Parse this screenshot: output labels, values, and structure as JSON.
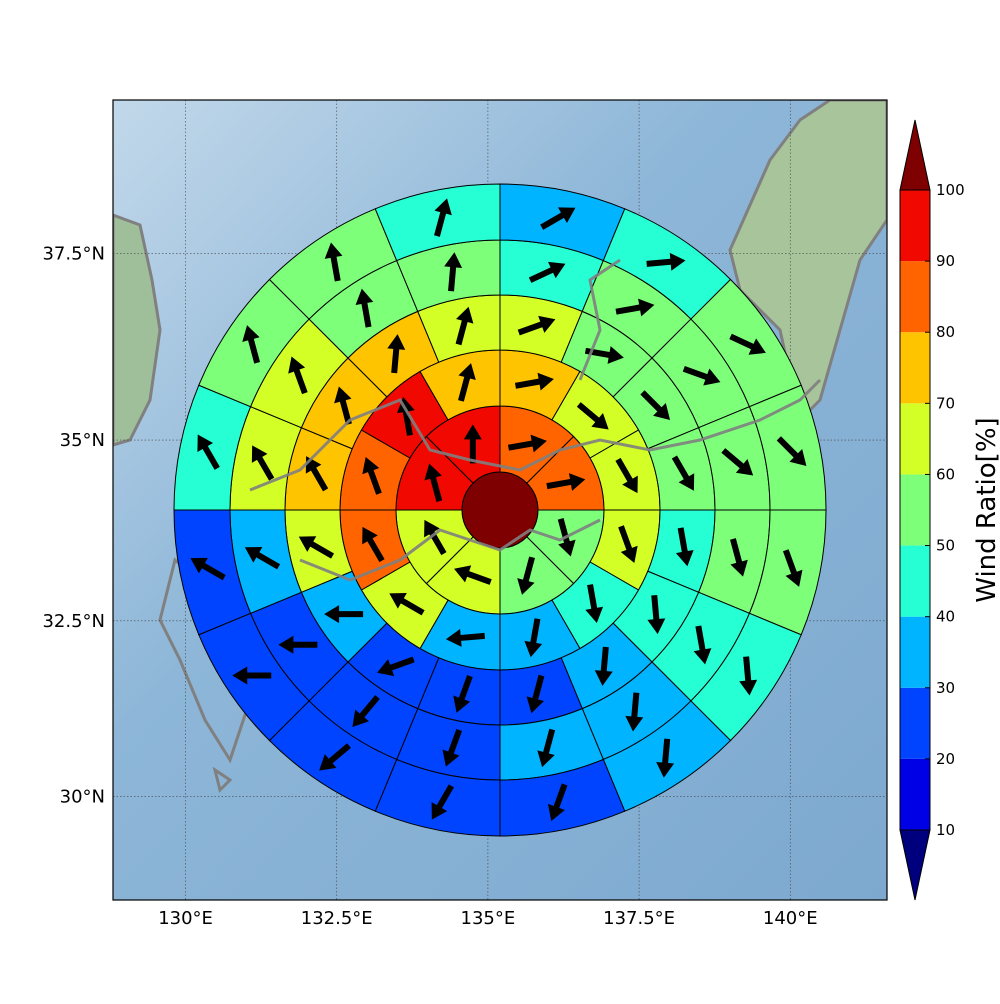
{
  "chart_data": {
    "type": "polar_grid",
    "xlim": [
      128.8,
      141.6
    ],
    "ylim": [
      28.5,
      39.5
    ],
    "xticks": [
      {
        "value": 130,
        "label": "130°E"
      },
      {
        "value": 132.5,
        "label": "132.5°E"
      },
      {
        "value": 135,
        "label": "135°E"
      },
      {
        "value": 137.5,
        "label": "137.5°E"
      },
      {
        "value": 140,
        "label": "140°E"
      }
    ],
    "yticks": [
      {
        "value": 30,
        "label": "30°N"
      },
      {
        "value": 32.5,
        "label": "32.5°N"
      },
      {
        "value": 35,
        "label": "35°N"
      },
      {
        "value": 37.5,
        "label": "37.5°N"
      }
    ],
    "grid": true,
    "center_value": 105,
    "rings": [
      {
        "values": [
          85,
          85,
          55,
          55,
          65,
          65,
          92,
          92
        ],
        "directions": [
          80,
          80,
          165,
          195,
          290,
          330,
          345,
          0
        ]
      },
      {
        "values": [
          72,
          65,
          65,
          65,
          45,
          35,
          35,
          62,
          85,
          85,
          92,
          72
        ],
        "directions": [
          80,
          130,
          150,
          160,
          170,
          190,
          265,
          300,
          330,
          340,
          350,
          15
        ]
      },
      {
        "values": [
          62,
          55,
          55,
          55,
          45,
          45,
          35,
          25,
          25,
          25,
          35,
          62,
          72,
          72,
          72,
          62
        ],
        "directions": [
          70,
          100,
          135,
          150,
          170,
          175,
          185,
          195,
          200,
          250,
          270,
          300,
          330,
          345,
          5,
          15
        ]
      },
      {
        "values": [
          45,
          55,
          55,
          55,
          55,
          45,
          35,
          35,
          25,
          25,
          25,
          35,
          62,
          62,
          55,
          55
        ],
        "directions": [
          65,
          80,
          110,
          130,
          165,
          170,
          185,
          195,
          200,
          220,
          270,
          300,
          330,
          340,
          350,
          5
        ]
      },
      {
        "values": [
          35,
          45,
          55,
          55,
          55,
          45,
          35,
          25,
          25,
          25,
          25,
          25,
          45,
          55,
          55,
          45
        ],
        "directions": [
          60,
          85,
          115,
          135,
          160,
          175,
          185,
          200,
          210,
          230,
          270,
          300,
          330,
          345,
          350,
          15
        ]
      }
    ],
    "colorbar": {
      "label": "Wind Ratio[%]",
      "ticks": [
        10,
        20,
        30,
        40,
        50,
        60,
        70,
        80,
        90,
        100
      ],
      "colors": [
        "#00007f",
        "#0000e6",
        "#0044ff",
        "#00b4ff",
        "#26ffd4",
        "#7dff7a",
        "#d4ff26",
        "#ffc400",
        "#ff6400",
        "#f10800",
        "#7f0000"
      ]
    }
  }
}
